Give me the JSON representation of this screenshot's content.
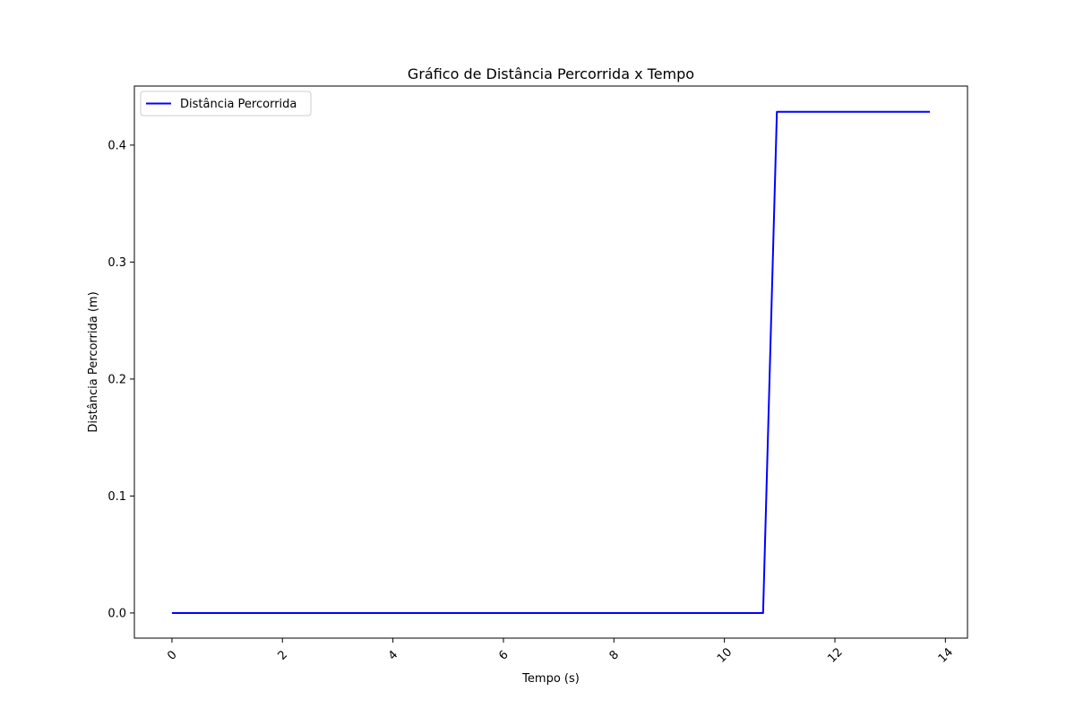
{
  "chart_data": {
    "type": "line",
    "title": "Gráfico de Distância Percorrida x Tempo",
    "xlabel": "Tempo (s)",
    "ylabel": "Distância Percorrida (m)",
    "xlim": [
      -0.68,
      14.4
    ],
    "ylim": [
      -0.0215,
      0.4505
    ],
    "xticks": [
      0,
      2,
      4,
      6,
      8,
      10,
      12,
      14
    ],
    "xtick_labels": [
      "0",
      "2",
      "4",
      "6",
      "8",
      "10",
      "12",
      "14"
    ],
    "xtick_rotation_deg": -45,
    "yticks": [
      0.0,
      0.1,
      0.2,
      0.3,
      0.4
    ],
    "ytick_labels": [
      "0.0",
      "0.1",
      "0.2",
      "0.3",
      "0.4"
    ],
    "grid": false,
    "legend_position": "upper-left",
    "series": [
      {
        "name": "Distância Percorrida",
        "color": "#0000ff",
        "x": [
          0,
          2,
          4,
          6,
          8,
          10,
          10.5,
          10.7,
          10.95,
          11.5,
          12,
          13,
          13.72
        ],
        "y": [
          0,
          0,
          0,
          0,
          0,
          0,
          0,
          0,
          0.4285,
          0.4285,
          0.4285,
          0.4285,
          0.4285
        ]
      }
    ]
  }
}
